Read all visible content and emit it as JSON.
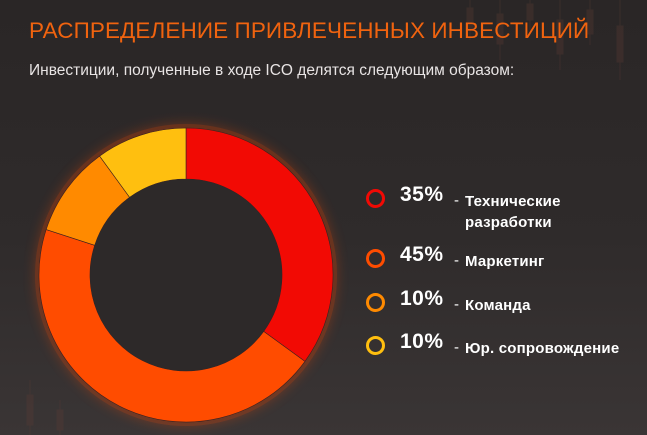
{
  "header": {
    "title": "РАСПРЕДЕЛЕНИЕ ПРИВЛЕЧЕННЫХ ИНВЕСТИЦИЙ",
    "subtitle": "Инвестиции, полученные в ходе ICO делятся следующим образом:"
  },
  "chart_data": {
    "type": "pie",
    "variant": "donut",
    "title": "",
    "legend_position": "right",
    "separator": "-",
    "series": [
      {
        "label": "Технические разработки",
        "value": 35,
        "display": "35%",
        "color": "#f20a04"
      },
      {
        "label": "Маркетинг",
        "value": 45,
        "display": "45%",
        "color": "#ff4c00"
      },
      {
        "label": "Команда",
        "value": 10,
        "display": "10%",
        "color": "#ff8a00"
      },
      {
        "label": "Юр. сопровождение",
        "value": 10,
        "display": "10%",
        "color": "#ffbf0f"
      }
    ]
  }
}
